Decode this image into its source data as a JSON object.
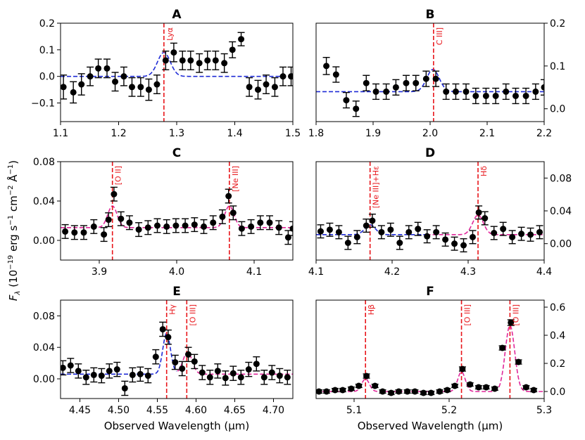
{
  "colors": {
    "line_marker": "#e8151a",
    "fit_blue": "#1f2bd6",
    "fit_magenta": "#e0279a",
    "data": "#000000"
  },
  "ylabel_parts": [
    "F",
    "λ",
    " (10",
    "−19",
    " erg s",
    "−1",
    " cm",
    "−2",
    " Å",
    "−1",
    ")"
  ],
  "chart_data": [
    {
      "id": "A",
      "type": "scatter",
      "title": "A",
      "xlim": [
        1.1,
        1.5
      ],
      "ylim": [
        -0.17,
        0.2
      ],
      "xticks": [
        1.1,
        1.2,
        1.3,
        1.4,
        1.5
      ],
      "xtick_labels": [
        "1.1",
        "1.2",
        "1.3",
        "1.4",
        "1.5"
      ],
      "yticks": [
        -0.1,
        0.0,
        0.1,
        0.2
      ],
      "ytick_labels": [
        "−0.1",
        "0.0",
        "0.1",
        "0.2"
      ],
      "yaxis_side": "left",
      "xlabel": "",
      "x": [
        1.105,
        1.122,
        1.136,
        1.151,
        1.165,
        1.18,
        1.194,
        1.209,
        1.223,
        1.238,
        1.252,
        1.266,
        1.281,
        1.295,
        1.31,
        1.324,
        1.339,
        1.353,
        1.367,
        1.382,
        1.396,
        1.411,
        1.425,
        1.44,
        1.454,
        1.469,
        1.483,
        1.497
      ],
      "y": [
        -0.04,
        -0.06,
        -0.03,
        0.0,
        0.03,
        0.03,
        -0.02,
        0.0,
        -0.04,
        -0.04,
        -0.05,
        -0.03,
        0.06,
        0.09,
        0.06,
        0.06,
        0.05,
        0.06,
        0.06,
        0.05,
        0.1,
        0.14,
        -0.04,
        -0.05,
        -0.03,
        -0.04,
        0.0,
        0.0
      ],
      "yerr": [
        0.045,
        0.04,
        0.04,
        0.035,
        0.035,
        0.035,
        0.035,
        0.035,
        0.035,
        0.035,
        0.04,
        0.035,
        0.035,
        0.035,
        0.035,
        0.035,
        0.035,
        0.035,
        0.035,
        0.035,
        0.03,
        0.025,
        0.035,
        0.035,
        0.035,
        0.035,
        0.035,
        0.035
      ],
      "fit": {
        "color": "blue",
        "baseline": 0.0,
        "peaks": [
          {
            "center": 1.278,
            "amp": 0.09,
            "sigma": 0.011
          }
        ]
      },
      "lines": [
        {
          "x": 1.278,
          "label": "Lyα"
        }
      ]
    },
    {
      "id": "B",
      "type": "scatter",
      "title": "B",
      "xlim": [
        1.8,
        2.2
      ],
      "ylim": [
        -0.03,
        0.2
      ],
      "xticks": [
        1.8,
        1.9,
        2.0,
        2.1,
        2.2
      ],
      "xtick_labels": [
        "1.8",
        "1.9",
        "2.0",
        "2.1",
        "2.2"
      ],
      "yticks": [
        0.0,
        0.1,
        0.2
      ],
      "ytick_labels": [
        "0.0",
        "0.1",
        "0.2"
      ],
      "yaxis_side": "right",
      "xlabel": "",
      "x": [
        1.818,
        1.835,
        1.853,
        1.87,
        1.888,
        1.905,
        1.923,
        1.94,
        1.958,
        1.975,
        1.993,
        2.01,
        2.028,
        2.045,
        2.063,
        2.08,
        2.098,
        2.115,
        2.133,
        2.15,
        2.168,
        2.185,
        2.2
      ],
      "y": [
        0.1,
        0.08,
        0.02,
        0.0,
        0.06,
        0.04,
        0.04,
        0.05,
        0.06,
        0.06,
        0.07,
        0.07,
        0.04,
        0.04,
        0.04,
        0.03,
        0.03,
        0.03,
        0.04,
        0.03,
        0.03,
        0.04,
        0.05
      ],
      "yerr": [
        0.02,
        0.018,
        0.018,
        0.018,
        0.018,
        0.018,
        0.018,
        0.018,
        0.018,
        0.018,
        0.018,
        0.018,
        0.018,
        0.018,
        0.018,
        0.018,
        0.018,
        0.018,
        0.018,
        0.018,
        0.018,
        0.018,
        0.018
      ],
      "fit": {
        "color": "blue",
        "baseline": 0.04,
        "peaks": [
          {
            "center": 2.005,
            "amp": 0.052,
            "sigma": 0.011
          }
        ]
      },
      "lines": [
        {
          "x": 2.006,
          "label": "C III]"
        }
      ]
    },
    {
      "id": "C",
      "type": "scatter",
      "title": "C",
      "xlim": [
        3.85,
        4.15
      ],
      "ylim": [
        -0.02,
        0.08
      ],
      "xticks": [
        3.9,
        4.0,
        4.1
      ],
      "xtick_labels": [
        "3.9",
        "4.0",
        "4.1"
      ],
      "yticks": [
        0.0,
        0.04,
        0.08
      ],
      "ytick_labels": [
        "0.00",
        "0.04",
        "0.08"
      ],
      "yaxis_side": "left",
      "xlabel": "",
      "x": [
        3.856,
        3.868,
        3.88,
        3.893,
        3.906,
        3.912,
        3.919,
        3.928,
        3.939,
        3.951,
        3.963,
        3.975,
        3.987,
        3.999,
        4.011,
        4.023,
        4.035,
        4.047,
        4.059,
        4.067,
        4.073,
        4.084,
        4.096,
        4.108,
        4.12,
        4.132,
        4.144,
        4.15
      ],
      "y": [
        0.009,
        0.008,
        0.008,
        0.014,
        0.006,
        0.021,
        0.047,
        0.022,
        0.018,
        0.011,
        0.013,
        0.015,
        0.014,
        0.015,
        0.015,
        0.016,
        0.014,
        0.018,
        0.024,
        0.045,
        0.028,
        0.012,
        0.014,
        0.018,
        0.018,
        0.013,
        0.003,
        0.012
      ],
      "yerr": [
        0.007,
        0.007,
        0.007,
        0.007,
        0.007,
        0.007,
        0.007,
        0.007,
        0.007,
        0.007,
        0.007,
        0.007,
        0.007,
        0.007,
        0.007,
        0.007,
        0.007,
        0.007,
        0.007,
        0.007,
        0.007,
        0.007,
        0.007,
        0.007,
        0.007,
        0.007,
        0.007,
        0.007
      ],
      "fit": {
        "color": "magenta",
        "baseline": 0.013,
        "peaks": [
          {
            "center": 3.917,
            "amp": 0.022,
            "sigma": 0.006
          },
          {
            "center": 4.068,
            "amp": 0.022,
            "sigma": 0.006
          }
        ]
      },
      "lines": [
        {
          "x": 3.917,
          "label": "[O II]"
        },
        {
          "x": 4.068,
          "label": "[Ne III]"
        }
      ]
    },
    {
      "id": "D",
      "type": "scatter",
      "title": "D",
      "xlim": [
        4.1,
        4.4
      ],
      "ylim": [
        -0.02,
        0.1
      ],
      "xticks": [
        4.1,
        4.2,
        4.3,
        4.4
      ],
      "xtick_labels": [
        "4.1",
        "4.2",
        "4.3",
        "4.4"
      ],
      "yticks": [
        0.0,
        0.04,
        0.08
      ],
      "ytick_labels": [
        "0.00",
        "0.04",
        "0.08"
      ],
      "yaxis_side": "right",
      "xlabel": "",
      "x": [
        4.106,
        4.118,
        4.13,
        4.142,
        4.154,
        4.166,
        4.174,
        4.186,
        4.198,
        4.21,
        4.222,
        4.234,
        4.246,
        4.258,
        4.27,
        4.282,
        4.294,
        4.306,
        4.314,
        4.322,
        4.334,
        4.346,
        4.358,
        4.37,
        4.382,
        4.394
      ],
      "y": [
        0.015,
        0.017,
        0.014,
        0.001,
        0.008,
        0.022,
        0.028,
        0.014,
        0.017,
        0.001,
        0.014,
        0.018,
        0.009,
        0.014,
        0.005,
        0.0,
        -0.002,
        0.008,
        0.038,
        0.031,
        0.013,
        0.018,
        0.008,
        0.012,
        0.011,
        0.014
      ],
      "yerr": [
        0.008,
        0.008,
        0.008,
        0.008,
        0.008,
        0.008,
        0.008,
        0.008,
        0.008,
        0.008,
        0.008,
        0.008,
        0.008,
        0.008,
        0.008,
        0.008,
        0.008,
        0.008,
        0.008,
        0.008,
        0.008,
        0.008,
        0.008,
        0.008,
        0.008,
        0.008
      ],
      "fit": {
        "color": "blue_magenta",
        "split_x": 4.245,
        "baseline": 0.011,
        "peaks": [
          {
            "center": 4.171,
            "amp": 0.012,
            "sigma": 0.007
          },
          {
            "center": 4.313,
            "amp": 0.024,
            "sigma": 0.007
          }
        ]
      },
      "lines": [
        {
          "x": 4.171,
          "label": "[Ne III]+Hε"
        },
        {
          "x": 4.313,
          "label": "Hδ"
        }
      ]
    },
    {
      "id": "E",
      "type": "scatter",
      "title": "E",
      "xlim": [
        4.425,
        4.725
      ],
      "ylim": [
        -0.025,
        0.1
      ],
      "xticks": [
        4.45,
        4.5,
        4.55,
        4.6,
        4.65,
        4.7
      ],
      "xtick_labels": [
        "4.45",
        "4.50",
        "4.55",
        "4.60",
        "4.65",
        "4.70"
      ],
      "yticks": [
        0.0,
        0.04,
        0.08
      ],
      "ytick_labels": [
        "0.00",
        "0.04",
        "0.08"
      ],
      "yaxis_side": "left",
      "xlabel": "Observed Wavelength (μm)",
      "x": [
        4.428,
        4.438,
        4.448,
        4.458,
        4.468,
        4.478,
        4.488,
        4.498,
        4.508,
        4.518,
        4.528,
        4.538,
        4.548,
        4.557,
        4.564,
        4.573,
        4.582,
        4.59,
        4.598,
        4.608,
        4.618,
        4.628,
        4.638,
        4.648,
        4.658,
        4.668,
        4.678,
        4.688,
        4.698,
        4.708,
        4.718
      ],
      "y": [
        0.014,
        0.017,
        0.01,
        0.002,
        0.005,
        0.004,
        0.01,
        0.012,
        -0.012,
        0.005,
        0.006,
        0.004,
        0.028,
        0.063,
        0.053,
        0.021,
        0.013,
        0.031,
        0.022,
        0.008,
        0.002,
        0.01,
        0.001,
        0.007,
        0.002,
        0.012,
        0.019,
        0.002,
        0.008,
        0.004,
        0.002
      ],
      "yerr": [
        0.009,
        0.009,
        0.009,
        0.009,
        0.009,
        0.009,
        0.009,
        0.009,
        0.009,
        0.009,
        0.009,
        0.009,
        0.009,
        0.009,
        0.009,
        0.009,
        0.009,
        0.009,
        0.009,
        0.009,
        0.009,
        0.009,
        0.009,
        0.009,
        0.009,
        0.009,
        0.009,
        0.009,
        0.009,
        0.009,
        0.009
      ],
      "fit": {
        "color": "blue_magenta",
        "split_x": 4.575,
        "baseline": 0.006,
        "peaks": [
          {
            "center": 4.562,
            "amp": 0.052,
            "sigma": 0.005
          },
          {
            "center": 4.589,
            "amp": 0.028,
            "sigma": 0.006
          }
        ]
      },
      "lines": [
        {
          "x": 4.562,
          "label": "Hγ"
        },
        {
          "x": 4.588,
          "label": "[O III]"
        }
      ]
    },
    {
      "id": "F",
      "type": "scatter",
      "title": "F",
      "xlim": [
        5.06,
        5.3
      ],
      "ylim": [
        -0.05,
        0.65
      ],
      "xticks": [
        5.1,
        5.2,
        5.3
      ],
      "xtick_labels": [
        "5.1",
        "5.2",
        "5.3"
      ],
      "yticks": [
        0.0,
        0.2,
        0.4,
        0.6
      ],
      "ytick_labels": [
        "0.0",
        "0.2",
        "0.4",
        "0.6"
      ],
      "yaxis_side": "right",
      "xlabel": "Observed Wavelength (μm)",
      "x": [
        5.063,
        5.071,
        5.08,
        5.088,
        5.097,
        5.105,
        5.113,
        5.122,
        5.13,
        5.139,
        5.147,
        5.156,
        5.164,
        5.173,
        5.181,
        5.19,
        5.198,
        5.206,
        5.214,
        5.222,
        5.231,
        5.239,
        5.248,
        5.256,
        5.265,
        5.273,
        5.281,
        5.289
      ],
      "y": [
        0.0,
        0.0,
        0.01,
        0.01,
        0.02,
        0.04,
        0.11,
        0.04,
        0.0,
        -0.01,
        0.0,
        0.0,
        0.0,
        -0.01,
        -0.01,
        0.0,
        0.01,
        0.04,
        0.16,
        0.05,
        0.03,
        0.03,
        0.02,
        0.31,
        0.49,
        0.21,
        0.03,
        0.01
      ],
      "yerr": [
        0.012,
        0.012,
        0.012,
        0.012,
        0.012,
        0.012,
        0.015,
        0.012,
        0.012,
        0.012,
        0.012,
        0.012,
        0.012,
        0.012,
        0.012,
        0.012,
        0.012,
        0.012,
        0.015,
        0.012,
        0.012,
        0.012,
        0.012,
        0.015,
        0.02,
        0.015,
        0.012,
        0.012
      ],
      "fit": {
        "color": "magenta",
        "baseline": 0.0,
        "peaks": [
          {
            "center": 5.112,
            "amp": 0.09,
            "sigma": 0.004
          },
          {
            "center": 5.213,
            "amp": 0.14,
            "sigma": 0.004
          },
          {
            "center": 5.264,
            "amp": 0.47,
            "sigma": 0.005
          }
        ]
      },
      "lines": [
        {
          "x": 5.112,
          "label": "Hβ"
        },
        {
          "x": 5.213,
          "label": "[O III]"
        },
        {
          "x": 5.264,
          "label": "[O III]"
        }
      ]
    }
  ]
}
